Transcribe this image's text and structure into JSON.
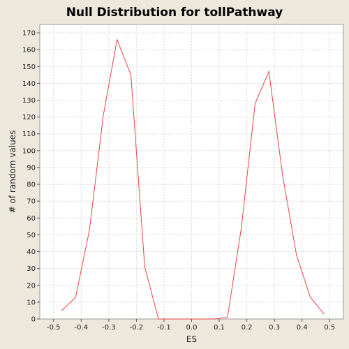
{
  "chart_data": {
    "type": "line",
    "title": "Null Distribution for tollPathway",
    "xlabel": "ES",
    "ylabel": "# of random values",
    "xlim": [
      -0.55,
      0.55
    ],
    "ylim": [
      0,
      175
    ],
    "x_ticks": [
      -0.5,
      -0.4,
      -0.3,
      -0.2,
      -0.1,
      0.0,
      0.1,
      0.2,
      0.3,
      0.4,
      0.5
    ],
    "y_ticks": [
      0,
      10,
      20,
      30,
      40,
      50,
      60,
      70,
      80,
      90,
      100,
      110,
      120,
      130,
      140,
      150,
      160,
      170
    ],
    "grid": true,
    "colors": {
      "line": "#F04040",
      "plot_bg": "#FFFFFF",
      "page_bg": "#ECE9DC",
      "grid": "#D8D8D8"
    },
    "series": [
      {
        "x": [
          -0.47,
          -0.42,
          -0.37,
          -0.32,
          -0.27,
          -0.22,
          -0.17,
          -0.12,
          -0.07,
          -0.02,
          0.03,
          0.08,
          0.13,
          0.18,
          0.23,
          0.28,
          0.33,
          0.38,
          0.43,
          0.48
        ],
        "y": [
          5,
          13,
          53,
          121,
          166,
          145,
          31,
          0,
          0,
          0,
          0,
          0,
          1,
          54,
          128,
          147,
          85,
          38,
          13,
          3
        ]
      }
    ]
  }
}
